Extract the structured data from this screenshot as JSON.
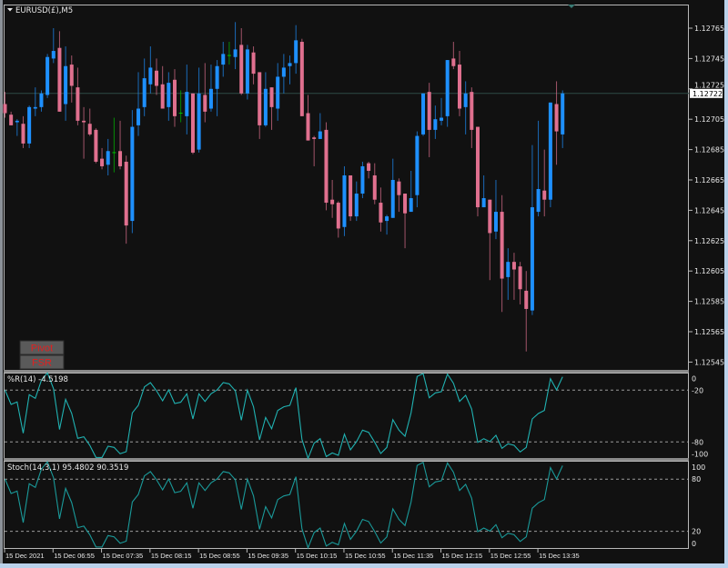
{
  "window": {
    "symbol_title": "EURUSD(£),M5"
  },
  "colors": {
    "background": "#111111",
    "bull": "#1e90ff",
    "bear": "#e0708f",
    "doji": "#00c000",
    "wr_line": "#20b2b2",
    "stoch_line": "#1a9a9a",
    "level": "#9a9a9a",
    "price_line": "#2e4a46",
    "button_text": "#e02020",
    "button_bg": "#5a5a5a"
  },
  "buttons": [
    {
      "label": "Pivot",
      "icon": "none"
    },
    {
      "label": "FSR",
      "icon": "none"
    }
  ],
  "price_axis": {
    "labels": [
      "1.12765",
      "1.12745",
      "1.12725",
      "1.12705",
      "1.12685",
      "1.12665",
      "1.12645",
      "1.12625",
      "1.12605",
      "1.12585",
      "1.12565",
      "1.12545"
    ],
    "current_price": "1.12722"
  },
  "wr_panel": {
    "title": "%R(14) -4.5198",
    "labels": [
      "0",
      "-20",
      "-80",
      "-100"
    ]
  },
  "stoch_panel": {
    "title": "Stoch(14,3,1) 95.4802 90.3519",
    "labels": [
      "100",
      "80",
      "20",
      "0"
    ]
  },
  "time_axis": {
    "labels": [
      "15 Dec 2021",
      "15 Dec 06:55",
      "15 Dec 07:35",
      "15 Dec 08:15",
      "15 Dec 08:55",
      "15 Dec 09:35",
      "15 Dec 10:15",
      "15 Dec 10:55",
      "15 Dec 11:35",
      "15 Dec 12:15",
      "15 Dec 12:55",
      "15 Dec 13:35"
    ]
  },
  "chart_data": [
    {
      "type": "candlestick",
      "title": "EURUSD(£),M5",
      "timeframe": "M5",
      "ylim": [
        1.12545,
        1.12775
      ],
      "grid": false,
      "current_price": 1.12722,
      "ohlc": [
        [
          1.12715,
          1.12723,
          1.12706,
          1.12709
        ],
        [
          1.12708,
          1.1271,
          1.12701,
          1.12701
        ],
        [
          1.12703,
          1.12705,
          1.12694,
          1.12704
        ],
        [
          1.12702,
          1.12707,
          1.12686,
          1.12689
        ],
        [
          1.12689,
          1.12714,
          1.12686,
          1.12713
        ],
        [
          1.12712,
          1.12726,
          1.12707,
          1.12713
        ],
        [
          1.12713,
          1.12724,
          1.1271,
          1.12722
        ],
        [
          1.12721,
          1.12748,
          1.12719,
          1.12746
        ],
        [
          1.12745,
          1.12765,
          1.12742,
          1.1275
        ],
        [
          1.12752,
          1.12763,
          1.1271,
          1.1271
        ],
        [
          1.12715,
          1.12753,
          1.12704,
          1.1274
        ],
        [
          1.12741,
          1.12747,
          1.12716,
          1.12727
        ],
        [
          1.12726,
          1.12739,
          1.12701,
          1.12704
        ],
        [
          1.12704,
          1.12713,
          1.12679,
          1.12703
        ],
        [
          1.12702,
          1.12712,
          1.12694,
          1.12695
        ],
        [
          1.12698,
          1.12699,
          1.12676,
          1.12677
        ],
        [
          1.12679,
          1.12686,
          1.12672,
          1.12674
        ],
        [
          1.12675,
          1.12692,
          1.12668,
          1.12684
        ],
        [
          1.12683,
          1.12706,
          1.1267,
          1.12683
        ],
        [
          1.12684,
          1.12704,
          1.12672,
          1.12674
        ],
        [
          1.12677,
          1.12681,
          1.12623,
          1.12635
        ],
        [
          1.12638,
          1.12711,
          1.1263,
          1.127
        ],
        [
          1.12701,
          1.12736,
          1.12694,
          1.12712
        ],
        [
          1.12713,
          1.12745,
          1.12707,
          1.12732
        ],
        [
          1.12728,
          1.12753,
          1.12722,
          1.12739
        ],
        [
          1.12737,
          1.12745,
          1.12721,
          1.12727
        ],
        [
          1.12728,
          1.1274,
          1.12712,
          1.12712
        ],
        [
          1.12713,
          1.12736,
          1.12704,
          1.12729
        ],
        [
          1.12731,
          1.12738,
          1.127,
          1.12707
        ],
        [
          1.12709,
          1.12724,
          1.12703,
          1.12709
        ],
        [
          1.12707,
          1.12741,
          1.12695,
          1.12723
        ],
        [
          1.12722,
          1.12722,
          1.12682,
          1.12683
        ],
        [
          1.12685,
          1.12739,
          1.12683,
          1.12722
        ],
        [
          1.12721,
          1.12742,
          1.12703,
          1.1271
        ],
        [
          1.12712,
          1.12741,
          1.1271,
          1.12725
        ],
        [
          1.12725,
          1.12744,
          1.12707,
          1.1274
        ],
        [
          1.12741,
          1.12756,
          1.12733,
          1.12748
        ],
        [
          1.12747,
          1.12756,
          1.12741,
          1.12747
        ],
        [
          1.12746,
          1.12769,
          1.12738,
          1.12751
        ],
        [
          1.12754,
          1.12765,
          1.12721,
          1.12722
        ],
        [
          1.12722,
          1.12754,
          1.12718,
          1.12751
        ],
        [
          1.12749,
          1.12753,
          1.12728,
          1.12735
        ],
        [
          1.12736,
          1.12736,
          1.12692,
          1.12701
        ],
        [
          1.12701,
          1.12736,
          1.127,
          1.12725
        ],
        [
          1.12726,
          1.12726,
          1.12698,
          1.12713
        ],
        [
          1.12712,
          1.12742,
          1.12704,
          1.12733
        ],
        [
          1.12733,
          1.12748,
          1.12722,
          1.12739
        ],
        [
          1.1274,
          1.12747,
          1.12728,
          1.12742
        ],
        [
          1.12742,
          1.12767,
          1.12735,
          1.12757
        ],
        [
          1.12756,
          1.12758,
          1.12707,
          1.12707
        ],
        [
          1.12709,
          1.12721,
          1.12691,
          1.12691
        ],
        [
          1.12693,
          1.12694,
          1.12674,
          1.12692
        ],
        [
          1.12692,
          1.12709,
          1.12692,
          1.12697
        ],
        [
          1.12698,
          1.12703,
          1.12645,
          1.1265
        ],
        [
          1.12652,
          1.12665,
          1.1264,
          1.12649
        ],
        [
          1.1265,
          1.12651,
          1.12627,
          1.12633
        ],
        [
          1.12634,
          1.12674,
          1.12628,
          1.12668
        ],
        [
          1.12668,
          1.12668,
          1.12638,
          1.12641
        ],
        [
          1.12641,
          1.12664,
          1.12638,
          1.12656
        ],
        [
          1.12656,
          1.12677,
          1.12653,
          1.12674
        ],
        [
          1.12676,
          1.12677,
          1.12666,
          1.12671
        ],
        [
          1.12668,
          1.12676,
          1.12649,
          1.12652
        ],
        [
          1.1265,
          1.1266,
          1.12631,
          1.12637
        ],
        [
          1.12638,
          1.12642,
          1.12629,
          1.12641
        ],
        [
          1.1264,
          1.12679,
          1.1264,
          1.12665
        ],
        [
          1.12664,
          1.12666,
          1.12644,
          1.12655
        ],
        [
          1.12656,
          1.12656,
          1.1262,
          1.12643
        ],
        [
          1.12644,
          1.12671,
          1.12644,
          1.12653
        ],
        [
          1.12655,
          1.12697,
          1.12647,
          1.12694
        ],
        [
          1.12695,
          1.12722,
          1.12694,
          1.12722
        ],
        [
          1.12723,
          1.12729,
          1.1268,
          1.12698
        ],
        [
          1.12698,
          1.12714,
          1.12692,
          1.12705
        ],
        [
          1.12704,
          1.12719,
          1.12701,
          1.12706
        ],
        [
          1.12707,
          1.12744,
          1.127,
          1.12744
        ],
        [
          1.12745,
          1.12756,
          1.12738,
          1.1274
        ],
        [
          1.12741,
          1.1275,
          1.12707,
          1.12712
        ],
        [
          1.12713,
          1.1273,
          1.12695,
          1.12722
        ],
        [
          1.12723,
          1.12726,
          1.12686,
          1.12698
        ],
        [
          1.127,
          1.127,
          1.12641,
          1.12647
        ],
        [
          1.12647,
          1.12668,
          1.12647,
          1.12653
        ],
        [
          1.12652,
          1.12652,
          1.12599,
          1.1263
        ],
        [
          1.12631,
          1.12665,
          1.12626,
          1.12644
        ],
        [
          1.12644,
          1.12655,
          1.12578,
          1.126
        ],
        [
          1.12601,
          1.1262,
          1.12586,
          1.12611
        ],
        [
          1.12611,
          1.12617,
          1.12586,
          1.12606
        ],
        [
          1.12608,
          1.12611,
          1.12583,
          1.12593
        ],
        [
          1.12592,
          1.12605,
          1.12552,
          1.1258
        ],
        [
          1.12579,
          1.12688,
          1.12576,
          1.12647
        ],
        [
          1.12644,
          1.12704,
          1.12641,
          1.12659
        ],
        [
          1.12658,
          1.12685,
          1.12641,
          1.12652
        ],
        [
          1.12652,
          1.12716,
          1.12647,
          1.12716
        ],
        [
          1.12715,
          1.1273,
          1.12675,
          1.12697
        ],
        [
          1.12695,
          1.12724,
          1.12686,
          1.12722
        ]
      ]
    },
    {
      "type": "line",
      "title": "%R(14) -4.5198",
      "ylim": [
        -100,
        0
      ],
      "levels": [
        -20,
        -80
      ],
      "values": [
        -20,
        -36.5,
        -33.7,
        -69.9,
        -25.3,
        -29.5,
        -8.5,
        0,
        -18.3,
        -65.6,
        -30.6,
        -47,
        -75.8,
        -74,
        -83.9,
        -97.9,
        -98,
        -84.9,
        -86.3,
        -93.7,
        -91.3,
        -46.3,
        -37.6,
        -16.2,
        -11.3,
        -20.7,
        -32.3,
        -19.7,
        -35.5,
        -34,
        -24.2,
        -53.4,
        -24.2,
        -33,
        -24.2,
        -19.7,
        -11.3,
        -12.7,
        -20.7,
        -54.8,
        -20,
        -39.3,
        -77.6,
        -51.6,
        -64.6,
        -43.5,
        -39.3,
        -37.6,
        -17.2,
        -76.9,
        -99,
        -81.4,
        -76.2,
        -96.9,
        -92.7,
        -95.5,
        -70.9,
        -89.2,
        -79.7,
        -66.3,
        -68.8,
        -80.4,
        -93.4,
        -86.3,
        -54.1,
        -66.3,
        -73.4,
        -46.4,
        -4.2,
        -0.7,
        -28.8,
        -23.2,
        -21.8,
        -1.4,
        -12,
        -33,
        -26,
        -41.8,
        -80.4,
        -76.2,
        -79.7,
        -72.3,
        -87.4,
        -82.1,
        -83.9,
        -91.6,
        -86.3,
        -53.4,
        -47.1,
        -43.5,
        -6.7,
        -19.7,
        -4.52
      ]
    },
    {
      "type": "line",
      "title": "Stoch(14,3,1) 95.4802 90.3519",
      "ylim": [
        0,
        100
      ],
      "levels": [
        20,
        80
      ],
      "values": [
        80,
        63.5,
        66.3,
        30.1,
        74.7,
        70.5,
        91.5,
        100,
        81.7,
        34.4,
        69.4,
        53,
        24.2,
        26,
        16.1,
        2.1,
        2,
        15.1,
        13.7,
        6.3,
        8.7,
        53.7,
        62.4,
        83.8,
        88.7,
        79.3,
        67.7,
        80.3,
        64.5,
        66,
        75.8,
        46.6,
        75.8,
        67,
        75.8,
        80.3,
        88.7,
        87.3,
        79.3,
        45.2,
        80,
        60.7,
        22.4,
        48.4,
        35.4,
        56.5,
        60.7,
        62.4,
        82.8,
        23.1,
        1,
        18.6,
        23.8,
        3.1,
        7.3,
        4.5,
        29.1,
        10.8,
        20.3,
        33.7,
        31.2,
        19.6,
        6.6,
        13.7,
        45.9,
        33.7,
        26.6,
        53.6,
        95.8,
        99.3,
        71.2,
        76.8,
        78.2,
        98.6,
        88,
        67,
        74,
        58.2,
        19.6,
        23.8,
        20.3,
        27.7,
        12.6,
        17.9,
        16.1,
        8.4,
        13.7,
        46.6,
        52.9,
        56.5,
        93.3,
        80.3,
        95.48
      ]
    }
  ]
}
